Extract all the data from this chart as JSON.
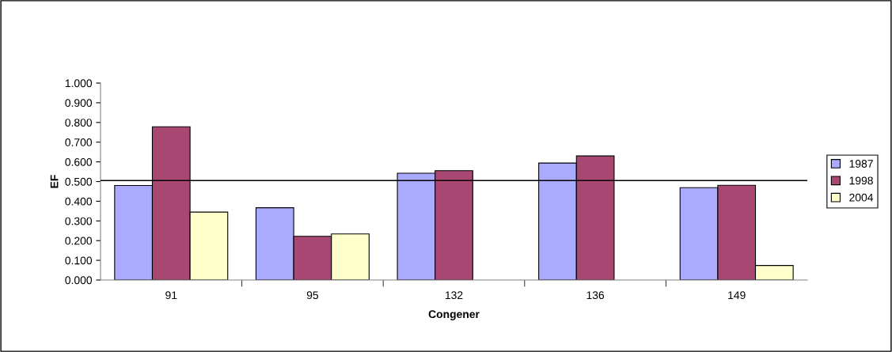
{
  "chart_data": {
    "type": "bar",
    "xlabel": "Congener",
    "ylabel": "EF",
    "categories": [
      "91",
      "95",
      "132",
      "136",
      "149"
    ],
    "series": [
      {
        "name": "1987",
        "color": "#aaaaff",
        "values": [
          0.48,
          0.367,
          0.542,
          0.594,
          0.469
        ]
      },
      {
        "name": "1998",
        "color": "#a94773",
        "values": [
          0.778,
          0.222,
          0.555,
          0.63,
          0.481
        ]
      },
      {
        "name": "2004",
        "color": "#ffffcc",
        "values": [
          0.345,
          0.234,
          null,
          null,
          0.074
        ]
      }
    ],
    "ylim": [
      0,
      1
    ],
    "yticks": [
      {
        "value": 0,
        "label": "0.000"
      },
      {
        "value": 0.1,
        "label": "0.100"
      },
      {
        "value": 0.2,
        "label": "0.200"
      },
      {
        "value": 0.3,
        "label": "0.300"
      },
      {
        "value": 0.4,
        "label": "0.400"
      },
      {
        "value": 0.5,
        "label": "0.500"
      },
      {
        "value": 0.6,
        "label": "0.600"
      },
      {
        "value": 0.7,
        "label": "0.700"
      },
      {
        "value": 0.8,
        "label": "0.800"
      },
      {
        "value": 0.9,
        "label": "0.900"
      },
      {
        "value": 1.0,
        "label": "1.000"
      }
    ],
    "ref_lines": [
      {
        "axis": "y",
        "value": 0.505,
        "color": "#000000"
      }
    ],
    "grid": false,
    "legend": "right"
  }
}
